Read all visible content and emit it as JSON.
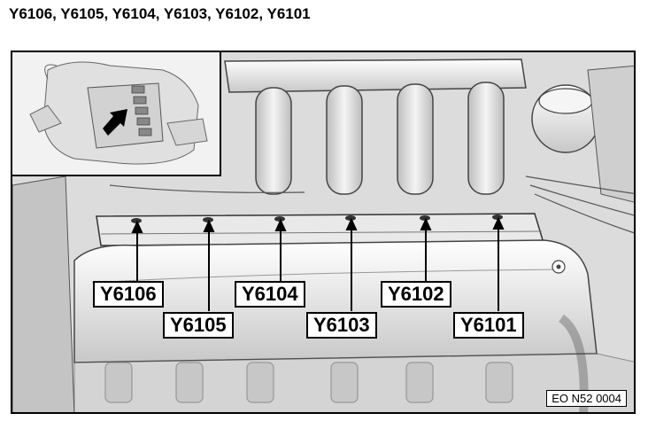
{
  "heading": "Y6106, Y6105, Y6104, Y6103, Y6102, Y6101",
  "callouts": {
    "y6106": "Y6106",
    "y6105": "Y6105",
    "y6104": "Y6104",
    "y6103": "Y6103",
    "y6102": "Y6102",
    "y6101": "Y6101"
  },
  "figure_ref": "EO N52 0004",
  "icons": {
    "inset_arrow": "arrow-icon"
  }
}
